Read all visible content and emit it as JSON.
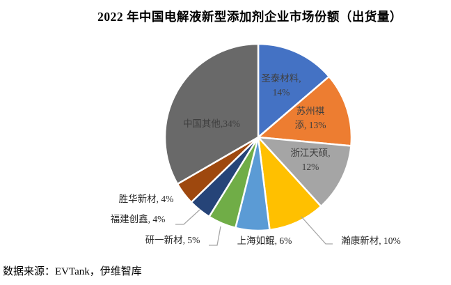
{
  "title": "2022 年中国电解液新型添加剂企业市场份额（出货量）",
  "source": "数据来源：EVTank，伊维智库",
  "chart_data": {
    "type": "pie",
    "title": "2022 年中国电解液新型添加剂企业市场份额（出货量）",
    "unit": "%",
    "start_angle_deg": 0,
    "direction": "clockwise",
    "legend": "none",
    "leader_line_color": "#A6A6A6",
    "slices": [
      {
        "name": "圣泰材料",
        "value": 14,
        "color": "#4472C4",
        "label_lines": [
          "圣泰材料,",
          "14%"
        ],
        "label_placement": "inside"
      },
      {
        "name": "苏州祺添",
        "value": 13,
        "color": "#ED7D31",
        "label_lines": [
          "苏州祺",
          "添, 13%"
        ],
        "label_placement": "inside"
      },
      {
        "name": "浙江天硕",
        "value": 12,
        "color": "#A5A5A5",
        "label_lines": [
          "浙江天硕,",
          "12%"
        ],
        "label_placement": "inside"
      },
      {
        "name": "瀚康新材",
        "value": 10,
        "color": "#FFC000",
        "label_lines": [
          "瀚康新材, 10%"
        ],
        "label_placement": "outside"
      },
      {
        "name": "上海如鲲",
        "value": 6,
        "color": "#5B9BD5",
        "label_lines": [
          "上海如鲲, 6%"
        ],
        "label_placement": "outside"
      },
      {
        "name": "研一新材",
        "value": 5,
        "color": "#70AD47",
        "label_lines": [
          "研一新材, 5%"
        ],
        "label_placement": "outside"
      },
      {
        "name": "福建创鑫",
        "value": 4,
        "color": "#264478",
        "label_lines": [
          "福建创鑫, 4%"
        ],
        "label_placement": "outside"
      },
      {
        "name": "胜华新材",
        "value": 4,
        "color": "#9E480E",
        "label_lines": [
          "胜华新材, 4%"
        ],
        "label_placement": "outside"
      },
      {
        "name": "中国其他",
        "value": 34,
        "color": "#696969",
        "label_lines": [
          "中国其他,34%"
        ],
        "label_placement": "inside"
      }
    ]
  }
}
